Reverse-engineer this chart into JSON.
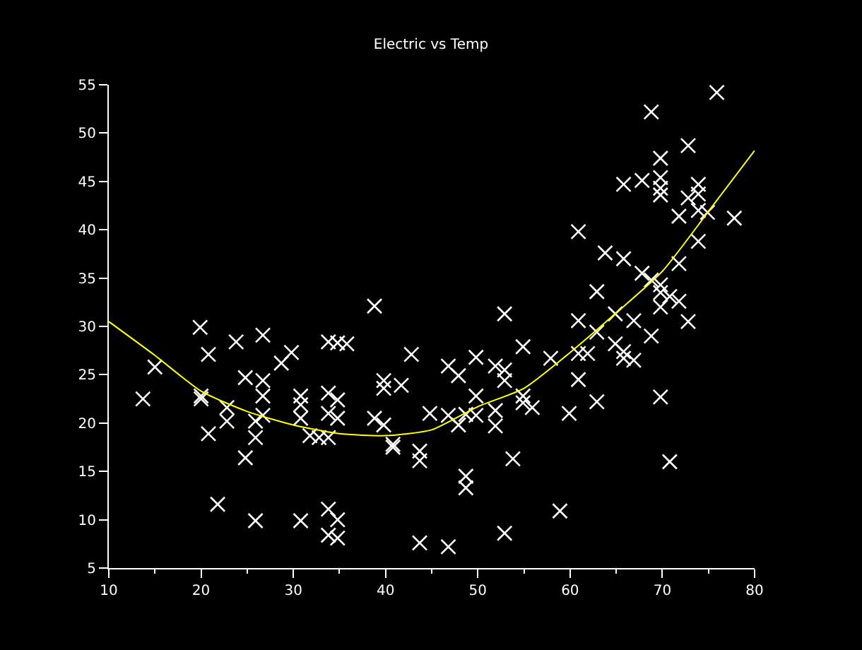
{
  "chart_data": {
    "type": "scatter",
    "title": "Electric vs Temp",
    "xlim": [
      10,
      80
    ],
    "ylim": [
      5,
      55
    ],
    "xticks": [
      10,
      20,
      30,
      40,
      50,
      60,
      70,
      80
    ],
    "yticks": [
      5,
      10,
      15,
      20,
      25,
      30,
      35,
      40,
      45,
      50,
      55
    ],
    "grid": false,
    "series": [
      {
        "marker": "cross",
        "color": "#ffffff",
        "x": [
          13.7,
          15,
          19.9,
          20.8,
          20,
          20,
          20.8,
          21.8,
          22.8,
          22.8,
          23.8,
          24.8,
          24.8,
          25.9,
          25.9,
          25.9,
          26.7,
          26.7,
          26.7,
          26.7,
          28.7,
          29.8,
          30.8,
          30.8,
          30.8,
          30.8,
          31.8,
          32.8,
          33.8,
          33.8,
          34.8,
          35.8,
          33.8,
          34.8,
          33.8,
          34.8,
          33.8,
          34.8,
          33.8,
          34.8,
          38.8,
          38.8,
          39.8,
          39.8,
          39.8,
          40.8,
          40.8,
          41.7,
          42.8,
          43.7,
          43.7,
          43.7,
          44.8,
          46.8,
          46.8,
          46.8,
          47.9,
          47.9,
          48.7,
          48.7,
          48.7,
          49.8,
          49.8,
          49.8,
          51.9,
          52.9,
          52.9,
          51.9,
          51.9,
          52.9,
          52.9,
          53.8,
          54.9,
          54.9,
          54.9,
          55.9,
          57.9,
          58.9,
          59.9,
          60.9,
          60.9,
          60.9,
          60.9,
          61.9,
          62.9,
          62.9,
          62.9,
          63.8,
          64.9,
          64.9,
          65.8,
          65.8,
          65.8,
          65.8,
          66.9,
          66.9,
          67.8,
          67.8,
          68.8,
          68.8,
          68.8,
          69.8,
          69.8,
          69.8,
          69.8,
          69.8,
          69.8,
          69.8,
          69.8,
          70.8,
          70.8,
          71.8,
          71.8,
          71.8,
          72.8,
          72.8,
          72.8,
          73.9,
          73.9,
          73.9,
          73.9,
          74.9,
          75.9,
          77.8
        ],
        "values": [
          22.5,
          25.8,
          29.9,
          27.1,
          22.8,
          22.5,
          18.9,
          11.6,
          21.6,
          20.2,
          28.4,
          24.7,
          16.4,
          20.2,
          18.5,
          9.9,
          29.1,
          24.4,
          22.8,
          20.8,
          26.2,
          27.3,
          22.8,
          21.9,
          20.5,
          9.9,
          18.7,
          18.5,
          18.5,
          28.4,
          28.3,
          28.2,
          23.1,
          22.4,
          21.0,
          20.5,
          11.1,
          10.0,
          8.4,
          8.1,
          32.1,
          20.5,
          24.4,
          23.6,
          19.8,
          17.8,
          17.5,
          23.9,
          27.1,
          17.1,
          16.1,
          7.6,
          21.0,
          25.9,
          20.8,
          7.2,
          24.9,
          19.8,
          20.9,
          14.5,
          13.3,
          26.8,
          22.8,
          20.8,
          25.9,
          25.5,
          24.4,
          21.3,
          19.7,
          31.3,
          8.6,
          16.3,
          27.9,
          22.8,
          22.1,
          21.6,
          26.7,
          10.9,
          21.0,
          39.8,
          30.6,
          27.2,
          24.5,
          27.2,
          33.6,
          29.4,
          22.2,
          37.6,
          31.3,
          28.2,
          44.7,
          37.0,
          27.4,
          26.7,
          30.6,
          26.5,
          45.1,
          35.5,
          52.2,
          34.8,
          29.0,
          47.4,
          45.4,
          44.3,
          43.6,
          34.3,
          33.5,
          32.0,
          22.7,
          33.1,
          16.0,
          41.4,
          36.5,
          32.6,
          48.7,
          43.3,
          30.5,
          44.7,
          43.7,
          42.0,
          38.8,
          41.8,
          54.2,
          41.2
        ]
      },
      {
        "type": "line",
        "marker": "none",
        "color": "#ffff00",
        "x": [
          10,
          15,
          20,
          25,
          30,
          35,
          40,
          45,
          50,
          55,
          60,
          65,
          70,
          75,
          80
        ],
        "values": [
          30.5,
          27.0,
          23.3,
          21.2,
          19.8,
          18.9,
          18.7,
          19.3,
          21.7,
          23.6,
          27.3,
          31.4,
          35.7,
          41.9,
          48.2
        ]
      }
    ]
  }
}
